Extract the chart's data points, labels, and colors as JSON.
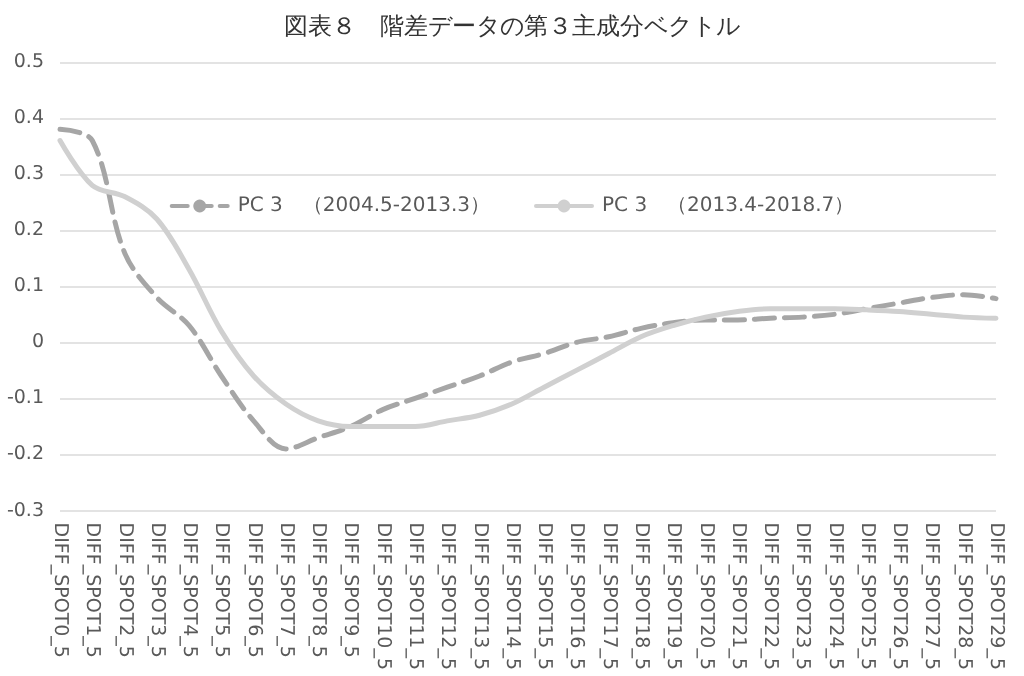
{
  "chart_data": {
    "type": "line",
    "title": "図表８　階差データの第３主成分ベクトル",
    "categories": [
      "DIFF_SPOT0_5",
      "DIFF_SPOT1_5",
      "DIFF_SPOT2_5",
      "DIFF_SPOT3_5",
      "DIFF_SPOT4_5",
      "DIFF_SPOT5_5",
      "DIFF_SPOT6_5",
      "DIFF_SPOT7_5",
      "DIFF_SPOT8_5",
      "DIFF_SPOT9_5",
      "DIFF_SPOT10_5",
      "DIFF_SPOT11_5",
      "DIFF_SPOT12_5",
      "DIFF_SPOT13_5",
      "DIFF_SPOT14_5",
      "DIFF_SPOT15_5",
      "DIFF_SPOT16_5",
      "DIFF_SPOT17_5",
      "DIFF_SPOT18_5",
      "DIFF_SPOT19_5",
      "DIFF_SPOT20_5",
      "DIFF_SPOT21_5",
      "DIFF_SPOT22_5",
      "DIFF_SPOT23_5",
      "DIFF_SPOT24_5",
      "DIFF_SPOT25_5",
      "DIFF_SPOT26_5",
      "DIFF_SPOT27_5",
      "DIFF_SPOT28_5",
      "DIFF_SPOT29_5"
    ],
    "series": [
      {
        "name": "PC 3　（2004.5-2013.3）",
        "color": "#a6a6a6",
        "line_style": "dashed",
        "values": [
          0.38,
          0.36,
          0.16,
          0.08,
          0.03,
          -0.06,
          -0.14,
          -0.19,
          -0.17,
          -0.15,
          -0.12,
          -0.1,
          -0.08,
          -0.06,
          -0.035,
          -0.02,
          0.0,
          0.01,
          0.025,
          0.035,
          0.04,
          0.04,
          0.043,
          0.045,
          0.05,
          0.06,
          0.07,
          0.08,
          0.085,
          0.078
        ]
      },
      {
        "name": "PC 3　（2013.4-2018.7）",
        "color": "#d0d0d0",
        "line_style": "solid",
        "values": [
          0.36,
          0.28,
          0.26,
          0.22,
          0.13,
          0.02,
          -0.06,
          -0.11,
          -0.14,
          -0.15,
          -0.15,
          -0.15,
          -0.14,
          -0.13,
          -0.11,
          -0.08,
          -0.05,
          -0.02,
          0.01,
          0.03,
          0.045,
          0.055,
          0.06,
          0.06,
          0.06,
          0.058,
          0.055,
          0.05,
          0.045,
          0.043
        ]
      }
    ],
    "ylim": [
      -0.3,
      0.5
    ],
    "yticks": [
      -0.3,
      -0.2,
      -0.1,
      0,
      0.1,
      0.2,
      0.3,
      0.4,
      0.5
    ],
    "grid": "y",
    "legend": "top",
    "marker": "none"
  }
}
